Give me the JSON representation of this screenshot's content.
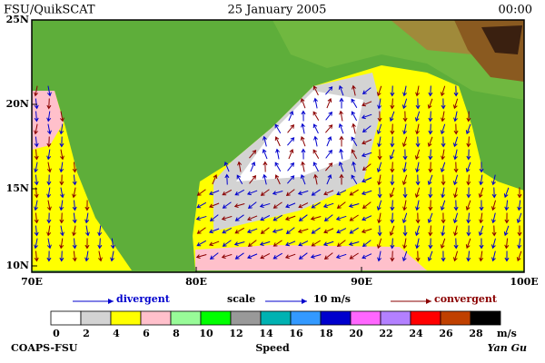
{
  "header": {
    "left": "FSU/QuikSCAT",
    "center": "25 January 2005",
    "right": "00:00"
  },
  "map": {
    "lat_labels": [
      "25N",
      "20N",
      "15N",
      "10N"
    ],
    "lon_labels": [
      "70E",
      "80E",
      "90E",
      "100E"
    ]
  },
  "legend": {
    "divergent": "divergent",
    "scale": "scale",
    "scale_value": "10 m/s",
    "convergent": "convergent"
  },
  "colorbar": {
    "title": "Speed",
    "unit": "m/s",
    "labels": [
      0,
      2,
      4,
      6,
      8,
      10,
      12,
      14,
      16,
      18,
      20,
      22,
      24,
      26,
      28
    ],
    "colors": [
      "#ffffff",
      "#d3d3d3",
      "#ffff00",
      "#ffc0cb",
      "#98fb98",
      "#00ff00",
      "#999999",
      "#00b2b2",
      "#3399ff",
      "#0000cd",
      "#ff66ff",
      "#b380ff",
      "#ff0000",
      "#c04000",
      "#000000"
    ]
  },
  "footer": {
    "left": "COAPS-FSU",
    "right": "Yan Gu"
  }
}
